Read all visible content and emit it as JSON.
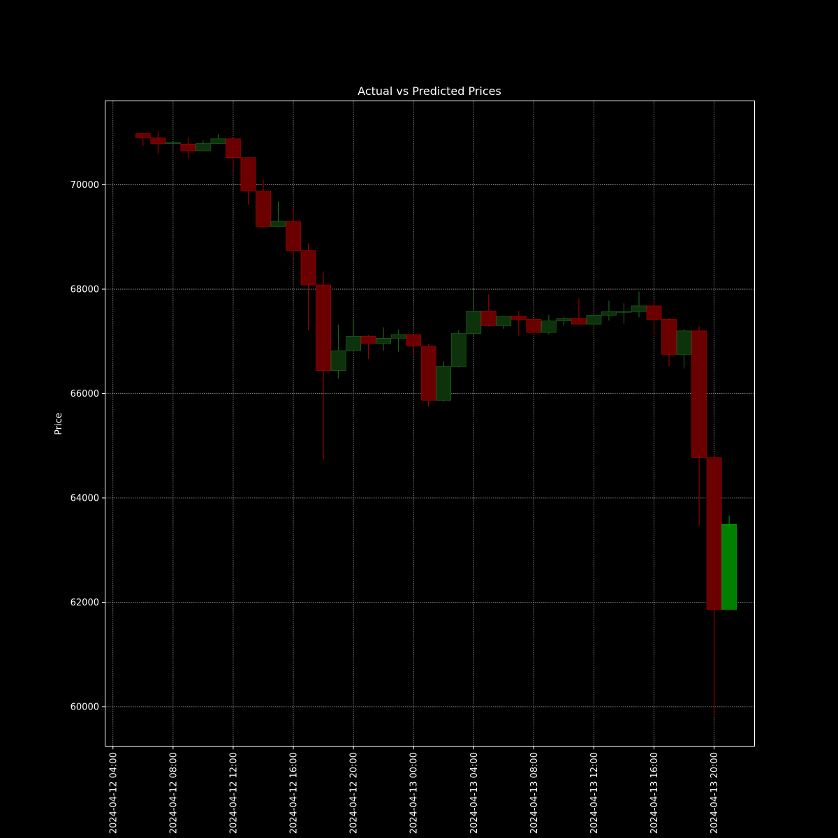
{
  "chart_data": {
    "type": "candlestick",
    "title": "Actual vs Predicted Prices",
    "xlabel": "",
    "ylabel": "Price",
    "ylim": [
      59250,
      71600
    ],
    "xlim": [
      "2024-04-12 03:30",
      "2024-04-13 22:40"
    ],
    "grid": true,
    "colors": {
      "background": "#000000",
      "text": "#ffffff",
      "down_fill": "#6b0000",
      "down_line": "#b00000",
      "up_fill": "#0d330d",
      "up_line": "#1f6e1f",
      "predicted_fill": "#008000",
      "predicted_line": "#00a000"
    },
    "y_ticks": [
      60000,
      62000,
      64000,
      66000,
      68000,
      70000
    ],
    "x_ticks": [
      "2024-04-12 04:00",
      "2024-04-12 08:00",
      "2024-04-12 12:00",
      "2024-04-12 16:00",
      "2024-04-12 20:00",
      "2024-04-13 00:00",
      "2024-04-13 04:00",
      "2024-04-13 08:00",
      "2024-04-13 12:00",
      "2024-04-13 16:00",
      "2024-04-13 20:00"
    ],
    "series": [
      {
        "kind": "actual",
        "candles": [
          {
            "t": "2024-04-12 06:00",
            "o": 70980,
            "h": 71000,
            "l": 70740,
            "c": 70900
          },
          {
            "t": "2024-04-12 07:00",
            "o": 70900,
            "h": 71030,
            "l": 70590,
            "c": 70790
          },
          {
            "t": "2024-04-12 08:00",
            "o": 70790,
            "h": 70830,
            "l": 70770,
            "c": 70810
          },
          {
            "t": "2024-04-12 09:00",
            "o": 70780,
            "h": 70910,
            "l": 70510,
            "c": 70650
          },
          {
            "t": "2024-04-12 10:00",
            "o": 70650,
            "h": 70850,
            "l": 70640,
            "c": 70790
          },
          {
            "t": "2024-04-12 11:00",
            "o": 70790,
            "h": 70970,
            "l": 70780,
            "c": 70880
          },
          {
            "t": "2024-04-12 12:00",
            "o": 70880,
            "h": 70890,
            "l": 70290,
            "c": 70520
          },
          {
            "t": "2024-04-12 13:00",
            "o": 70520,
            "h": 70520,
            "l": 69620,
            "c": 69880
          },
          {
            "t": "2024-04-12 14:00",
            "o": 69880,
            "h": 70100,
            "l": 69180,
            "c": 69200
          },
          {
            "t": "2024-04-12 15:00",
            "o": 69200,
            "h": 69680,
            "l": 69200,
            "c": 69300
          },
          {
            "t": "2024-04-12 16:00",
            "o": 69300,
            "h": 69580,
            "l": 68600,
            "c": 68740
          },
          {
            "t": "2024-04-12 17:00",
            "o": 68740,
            "h": 68880,
            "l": 67220,
            "c": 68080
          },
          {
            "t": "2024-04-12 18:00",
            "o": 68080,
            "h": 68340,
            "l": 64740,
            "c": 66440
          },
          {
            "t": "2024-04-12 19:00",
            "o": 66440,
            "h": 67320,
            "l": 66280,
            "c": 66820
          },
          {
            "t": "2024-04-12 20:00",
            "o": 66820,
            "h": 67430,
            "l": 66820,
            "c": 67100
          },
          {
            "t": "2024-04-12 21:00",
            "o": 67100,
            "h": 67120,
            "l": 66660,
            "c": 66960
          },
          {
            "t": "2024-04-12 22:00",
            "o": 66960,
            "h": 67270,
            "l": 66820,
            "c": 67060
          },
          {
            "t": "2024-04-12 23:00",
            "o": 67060,
            "h": 67230,
            "l": 66800,
            "c": 67130
          },
          {
            "t": "2024-04-13 00:00",
            "o": 67130,
            "h": 67130,
            "l": 66700,
            "c": 66910
          },
          {
            "t": "2024-04-13 01:00",
            "o": 66910,
            "h": 66950,
            "l": 65740,
            "c": 65870
          },
          {
            "t": "2024-04-13 02:00",
            "o": 65870,
            "h": 66620,
            "l": 65850,
            "c": 66520
          },
          {
            "t": "2024-04-13 03:00",
            "o": 66520,
            "h": 67210,
            "l": 66500,
            "c": 67150
          },
          {
            "t": "2024-04-13 04:00",
            "o": 67150,
            "h": 68020,
            "l": 67080,
            "c": 67580
          },
          {
            "t": "2024-04-13 05:00",
            "o": 67580,
            "h": 67900,
            "l": 67280,
            "c": 67300
          },
          {
            "t": "2024-04-13 06:00",
            "o": 67300,
            "h": 67490,
            "l": 67240,
            "c": 67480
          },
          {
            "t": "2024-04-13 07:00",
            "o": 67480,
            "h": 67580,
            "l": 67110,
            "c": 67420
          },
          {
            "t": "2024-04-13 08:00",
            "o": 67420,
            "h": 67450,
            "l": 67160,
            "c": 67170
          },
          {
            "t": "2024-04-13 09:00",
            "o": 67170,
            "h": 67510,
            "l": 67130,
            "c": 67390
          },
          {
            "t": "2024-04-13 10:00",
            "o": 67390,
            "h": 67470,
            "l": 67300,
            "c": 67440
          },
          {
            "t": "2024-04-13 11:00",
            "o": 67440,
            "h": 67820,
            "l": 67320,
            "c": 67330
          },
          {
            "t": "2024-04-13 12:00",
            "o": 67330,
            "h": 67520,
            "l": 67330,
            "c": 67500
          },
          {
            "t": "2024-04-13 13:00",
            "o": 67500,
            "h": 67780,
            "l": 67400,
            "c": 67570
          },
          {
            "t": "2024-04-13 14:00",
            "o": 67560,
            "h": 67730,
            "l": 67340,
            "c": 67570
          },
          {
            "t": "2024-04-13 15:00",
            "o": 67570,
            "h": 67950,
            "l": 67460,
            "c": 67680
          },
          {
            "t": "2024-04-13 16:00",
            "o": 67680,
            "h": 67790,
            "l": 67130,
            "c": 67420
          },
          {
            "t": "2024-04-13 17:00",
            "o": 67420,
            "h": 67440,
            "l": 66520,
            "c": 66750
          },
          {
            "t": "2024-04-13 18:00",
            "o": 66750,
            "h": 67230,
            "l": 66480,
            "c": 67200
          },
          {
            "t": "2024-04-13 19:00",
            "o": 67200,
            "h": 67290,
            "l": 63470,
            "c": 64770
          },
          {
            "t": "2024-04-13 20:00",
            "o": 64770,
            "h": 64850,
            "l": 59820,
            "c": 61860
          }
        ]
      },
      {
        "kind": "predicted",
        "candles": [
          {
            "t": "2024-04-13 21:00",
            "o": 61860,
            "h": 63660,
            "l": 61860,
            "c": 63500
          }
        ]
      }
    ]
  }
}
